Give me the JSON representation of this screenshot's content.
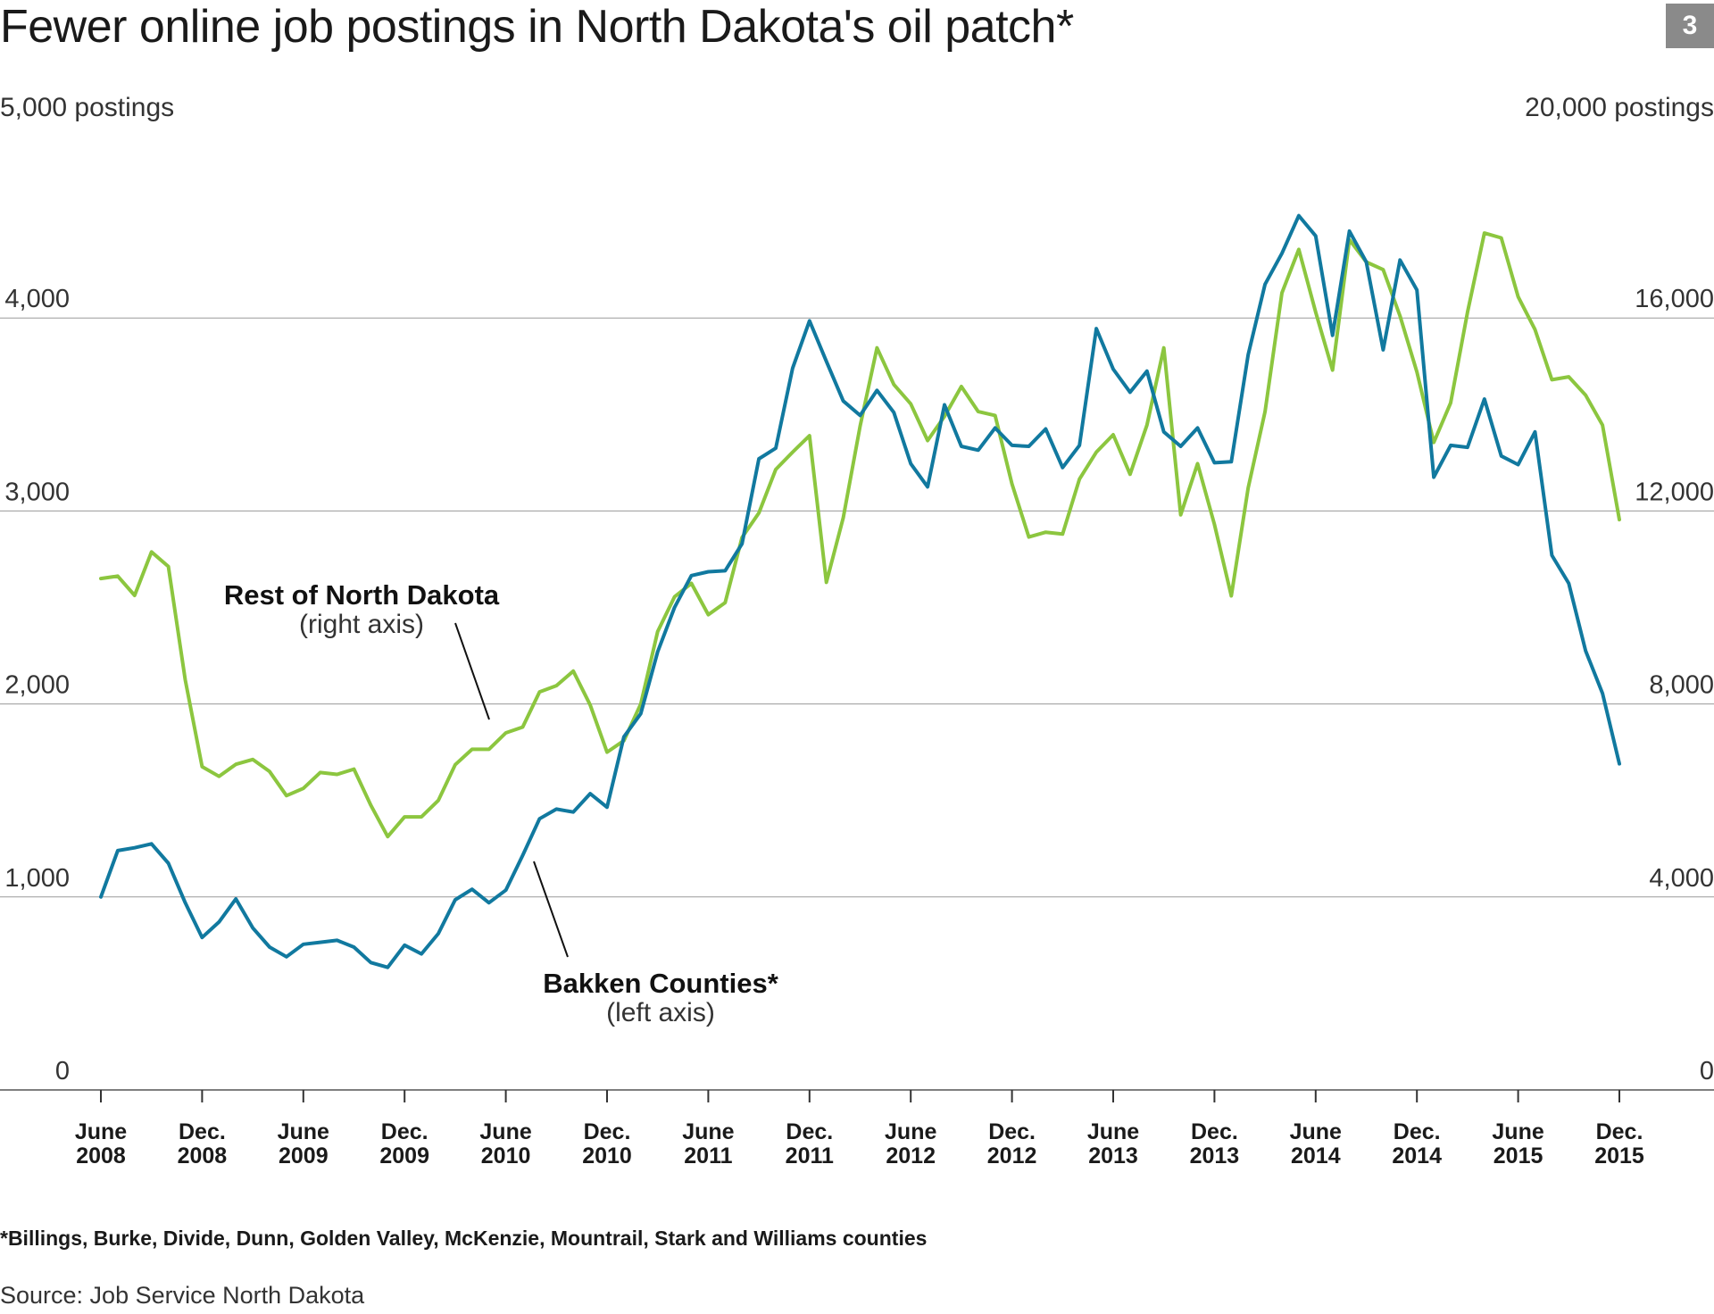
{
  "title": "Fewer online job postings in North Dakota's oil patch*",
  "badge": "3",
  "left_axis_unit": "5,000 postings",
  "right_axis_unit": "20,000 postings",
  "footnote": "*Billings, Burke, Divide, Dunn, Golden Valley, McKenzie, Mountrail, Stark and Williams counties",
  "source": "Source: Job Service North Dakota",
  "colors": {
    "bakken": "#11799f",
    "rest": "#8cc63f",
    "grid": "#9a9a9a"
  },
  "chart_data": {
    "type": "line",
    "title": "Fewer online job postings in North Dakota's oil patch*",
    "left_ylim": [
      0,
      5000
    ],
    "right_ylim": [
      0,
      20000
    ],
    "left_ticks": [
      "0",
      "1,000",
      "2,000",
      "3,000",
      "4,000"
    ],
    "right_ticks": [
      "0",
      "4,000",
      "8,000",
      "12,000",
      "16,000"
    ],
    "x_start": "2008-06",
    "x_end": "2015-12",
    "x_ticks": [
      {
        "m": "June",
        "y": "2008"
      },
      {
        "m": "Dec.",
        "y": "2008"
      },
      {
        "m": "June",
        "y": "2009"
      },
      {
        "m": "Dec.",
        "y": "2009"
      },
      {
        "m": "June",
        "y": "2010"
      },
      {
        "m": "Dec.",
        "y": "2010"
      },
      {
        "m": "June",
        "y": "2011"
      },
      {
        "m": "Dec.",
        "y": "2011"
      },
      {
        "m": "June",
        "y": "2012"
      },
      {
        "m": "Dec.",
        "y": "2012"
      },
      {
        "m": "June",
        "y": "2013"
      },
      {
        "m": "Dec.",
        "y": "2013"
      },
      {
        "m": "June",
        "y": "2014"
      },
      {
        "m": "Dec.",
        "y": "2014"
      },
      {
        "m": "June",
        "y": "2015"
      },
      {
        "m": "Dec.",
        "y": "2015"
      }
    ],
    "grid": true,
    "series": [
      {
        "name": "Bakken Counties*",
        "axis": "left",
        "annotation": "(left axis)",
        "values": [
          1000,
          1240,
          1255,
          1275,
          1175,
          970,
          790,
          870,
          990,
          840,
          740,
          690,
          755,
          765,
          775,
          740,
          660,
          635,
          750,
          705,
          810,
          985,
          1040,
          970,
          1035,
          1215,
          1405,
          1455,
          1440,
          1535,
          1465,
          1830,
          1950,
          2270,
          2500,
          2665,
          2685,
          2690,
          2830,
          3270,
          3325,
          3740,
          3985,
          3775,
          3570,
          3495,
          3625,
          3510,
          3245,
          3125,
          3550,
          3335,
          3315,
          3430,
          3340,
          3335,
          3425,
          3225,
          3340,
          3945,
          3735,
          3615,
          3725,
          3410,
          3335,
          3430,
          3250,
          3255,
          3810,
          4175,
          4335,
          4530,
          4425,
          3910,
          4450,
          4290,
          3835,
          4300,
          4145,
          3175,
          3340,
          3330,
          3580,
          3285,
          3240,
          3410,
          2770,
          2625,
          2275,
          2055,
          1690
        ]
      },
      {
        "name": "Rest of North Dakota",
        "axis": "right",
        "annotation": "(right axis)",
        "values": [
          10600,
          10650,
          10250,
          11150,
          10850,
          8500,
          6700,
          6500,
          6750,
          6850,
          6600,
          6100,
          6250,
          6580,
          6540,
          6650,
          5900,
          5250,
          5660,
          5660,
          6000,
          6740,
          7060,
          7060,
          7400,
          7520,
          8250,
          8380,
          8680,
          7980,
          7000,
          7240,
          8000,
          9500,
          10220,
          10500,
          9850,
          10100,
          11450,
          11960,
          12860,
          13220,
          13560,
          10520,
          11860,
          13760,
          15380,
          14620,
          14220,
          13460,
          13960,
          14580,
          14060,
          13980,
          12560,
          11460,
          11560,
          11520,
          12660,
          13220,
          13580,
          12760,
          13780,
          15380,
          11920,
          12980,
          11720,
          10240,
          12480,
          14060,
          16520,
          17420,
          16120,
          14920,
          17620,
          17160,
          17000,
          16040,
          14880,
          13420,
          14240,
          16120,
          17760,
          17660,
          16440,
          15760,
          14720,
          14780,
          14400,
          13780,
          11820
        ]
      }
    ]
  },
  "labels": {
    "rest_name": "Rest of North Dakota",
    "rest_axis": "(right axis)",
    "bakken_name": "Bakken Counties*",
    "bakken_axis": "(left axis)"
  }
}
